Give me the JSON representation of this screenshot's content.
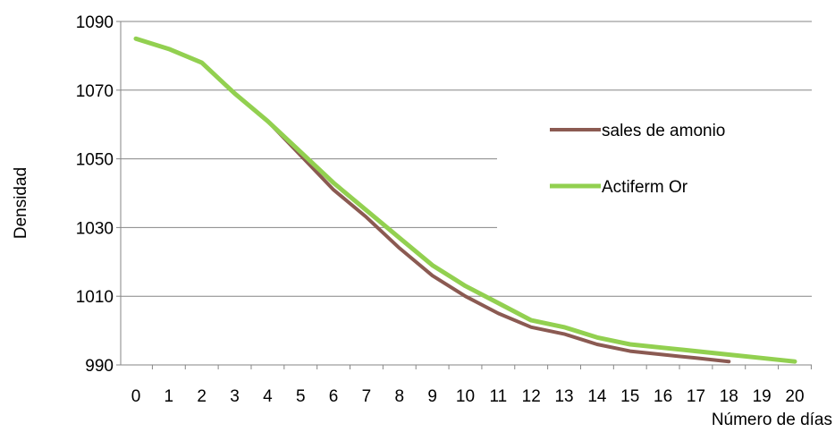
{
  "chart_data": {
    "type": "line",
    "title": "",
    "xlabel": "Número de días",
    "ylabel": "Densidad",
    "x": [
      0,
      1,
      2,
      3,
      4,
      5,
      6,
      7,
      8,
      9,
      10,
      11,
      12,
      13,
      14,
      15,
      16,
      17,
      18,
      19,
      20
    ],
    "x_ticks": [
      "0",
      "1",
      "2",
      "3",
      "4",
      "5",
      "6",
      "7",
      "8",
      "9",
      "10",
      "11",
      "12",
      "13",
      "14",
      "15",
      "16",
      "17",
      "18",
      "19",
      "20"
    ],
    "y_ticks": [
      "990",
      "1010",
      "1030",
      "1050",
      "1070",
      "1090"
    ],
    "ylim": [
      990,
      1090
    ],
    "grid": "horizontal",
    "legend_position": "right",
    "series": [
      {
        "name": "sales de amonio",
        "color": "#8B5A52",
        "values": [
          1085,
          1082,
          1078,
          1069,
          1061,
          1051,
          1041,
          1033,
          1024,
          1016,
          1010,
          1005,
          1001,
          999,
          996,
          994,
          993,
          992,
          991,
          null,
          null
        ]
      },
      {
        "name": "Actiferm Org",
        "legend_label": "Actiferm Or",
        "color": "#92D050",
        "values": [
          1085,
          1082,
          1078,
          1069,
          1061,
          1052,
          1043,
          1035,
          1027,
          1019,
          1013,
          1008,
          1003,
          1001,
          998,
          996,
          995,
          994,
          993,
          992,
          991
        ]
      }
    ]
  }
}
